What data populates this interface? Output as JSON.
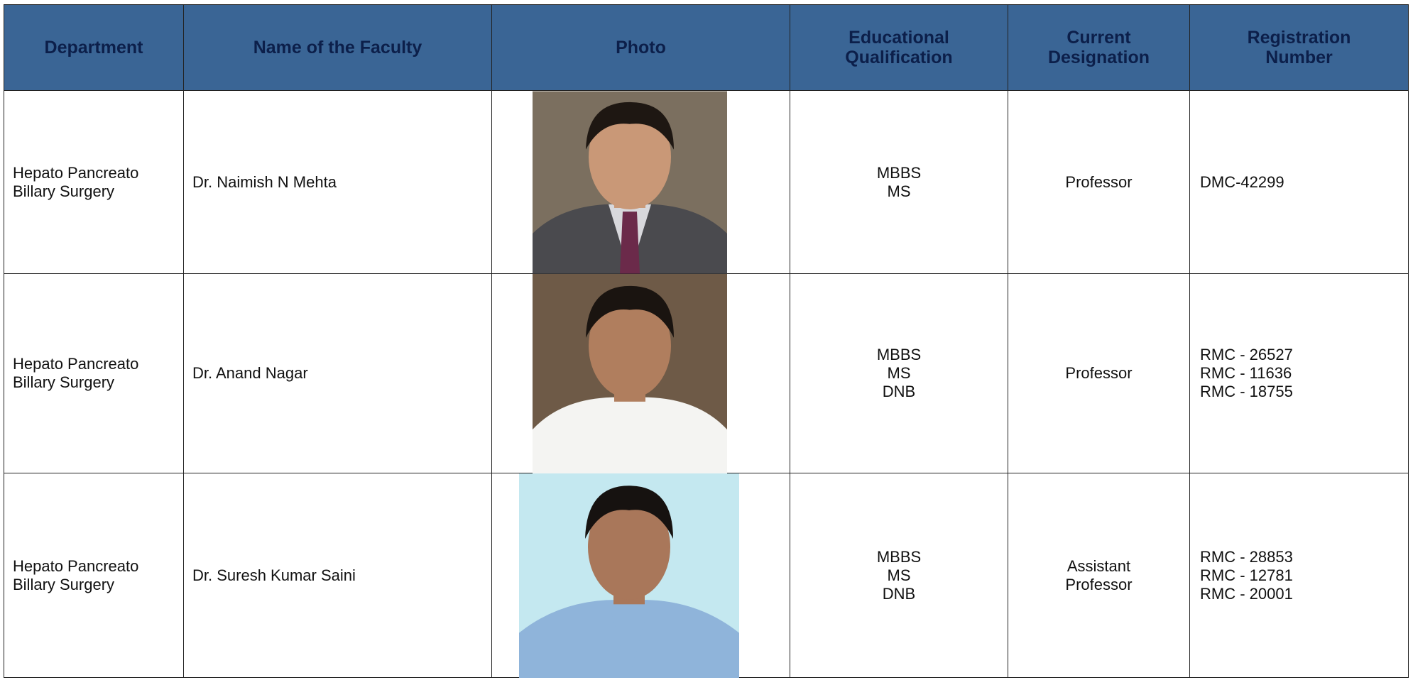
{
  "header": {
    "columns": [
      [
        "Department"
      ],
      [
        "Name of the Faculty"
      ],
      [
        "Photo"
      ],
      [
        "Educational",
        "Qualification"
      ],
      [
        "Current",
        "Designation"
      ],
      [
        "Registration",
        "Number"
      ]
    ]
  },
  "table": {
    "rows": [
      {
        "department": [
          "Hepato Pancreato",
          "Billary Surgery"
        ],
        "name": "Dr. Naimish N Mehta",
        "qualification": [
          "MBBS",
          "MS"
        ],
        "designation": [
          "Professor"
        ],
        "registration": [
          "DMC-42299"
        ]
      },
      {
        "department": [
          "Hepato Pancreato",
          "Billary Surgery"
        ],
        "name": "Dr. Anand Nagar",
        "qualification": [
          "MBBS",
          "MS",
          "DNB"
        ],
        "designation": [
          "Professor"
        ],
        "registration": [
          "RMC - 26527",
          "RMC - 11636",
          "RMC - 18755"
        ]
      },
      {
        "department": [
          "Hepato Pancreato",
          "Billary Surgery"
        ],
        "name": "Dr. Suresh Kumar Saini",
        "qualification": [
          "MBBS",
          "MS",
          "DNB"
        ],
        "designation": [
          "Assistant",
          "Professor"
        ],
        "registration": [
          "RMC - 28853",
          "RMC - 12781",
          "RMC - 20001"
        ]
      }
    ]
  }
}
